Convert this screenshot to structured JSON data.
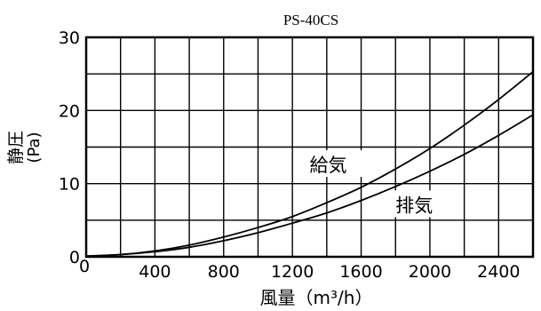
{
  "chart_data": {
    "type": "line",
    "title": "PS-40CS",
    "xlabel": "風量（m³/h）",
    "ylabel_main": "静圧",
    "ylabel_unit": "(Pa)",
    "xlim": [
      0,
      2600
    ],
    "ylim": [
      0,
      30
    ],
    "x_ticks": [
      0,
      400,
      800,
      1200,
      1600,
      2000,
      2400
    ],
    "y_ticks": [
      0,
      10,
      20,
      30
    ],
    "grid_x_step": 200,
    "grid_y_step": 5,
    "grid": true,
    "series": [
      {
        "name": "給気",
        "x": [
          0,
          200,
          400,
          600,
          800,
          1000,
          1200,
          1400,
          1600,
          1800,
          2000,
          2200,
          2400,
          2600
        ],
        "y": [
          0.1,
          0.3,
          0.8,
          1.6,
          2.7,
          4.0,
          5.5,
          7.4,
          9.5,
          12.0,
          14.8,
          18.0,
          21.5,
          25.3
        ]
      },
      {
        "name": "排気",
        "x": [
          0,
          200,
          400,
          600,
          800,
          1000,
          1200,
          1400,
          1600,
          1800,
          2000,
          2200,
          2400,
          2600
        ],
        "y": [
          0.1,
          0.3,
          0.7,
          1.3,
          2.2,
          3.3,
          4.6,
          6.0,
          7.7,
          9.6,
          11.7,
          14.0,
          16.6,
          19.4
        ]
      }
    ]
  }
}
